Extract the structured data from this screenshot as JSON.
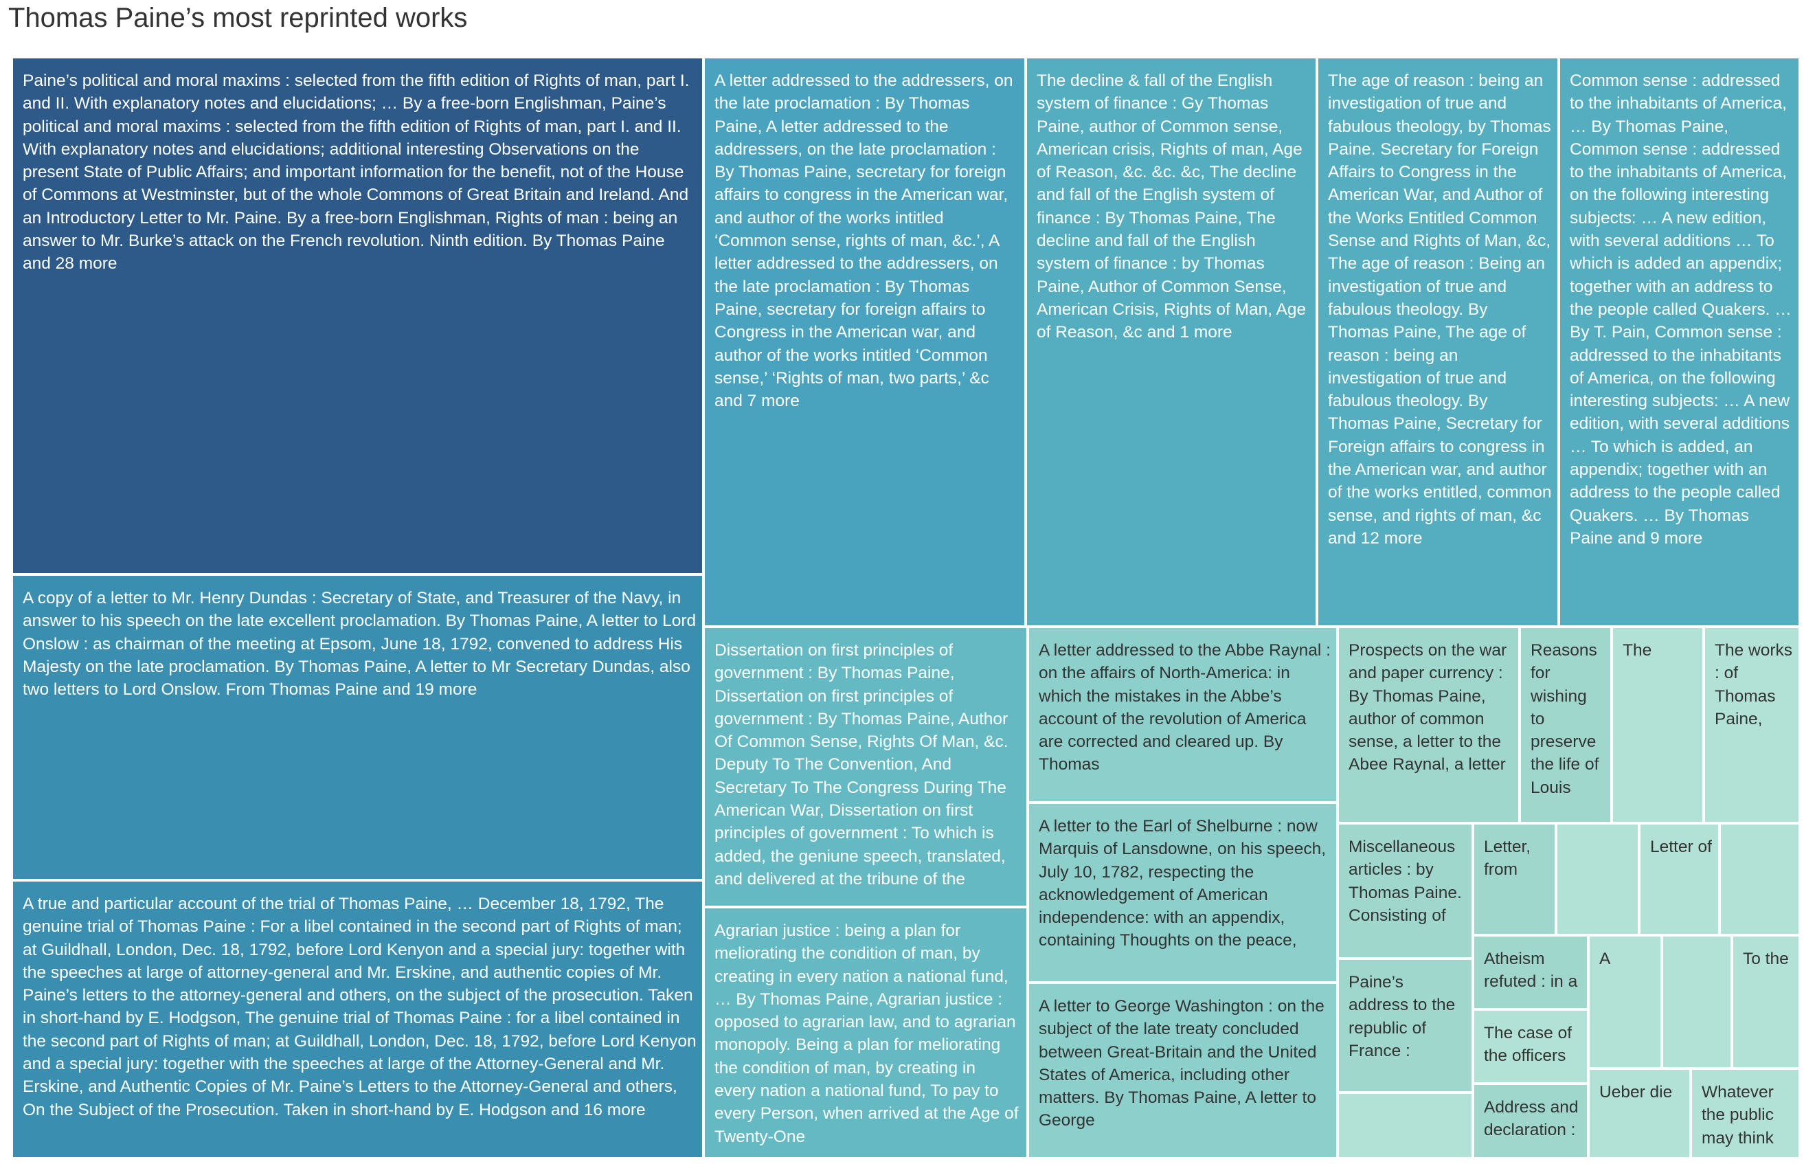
{
  "chart_data": {
    "type": "treemap",
    "title": "Thomas Paine’s most reprinted works",
    "size_measure": "relative reprint count (estimated from tile areas)",
    "colors": {
      "darkest": "#2d5a88",
      "dark": "#3a8eb0",
      "mid_dark": "#4aa3be",
      "mid": "#55aec0",
      "mid_light": "#64b9c2",
      "light": "#8dcfca",
      "lighter": "#9fd7cd",
      "lightest": "#b2e1d5",
      "label_light": "#ffffff",
      "label_dark": "#333333"
    },
    "items": [
      {
        "id": 1,
        "value": 455,
        "color": "darkest",
        "label": "Paine’s political and moral maxims : selected from the fifth edition of Rights of man, part I. and II. With explanatory notes and elucidations; … By a free-born Englishman, Paine’s political and moral maxims : selected from the fifth edition of Rights of man, part I. and II. With explanatory notes and elucidations; additional interesting Observations on the present State of Public Affairs; and important information for the benefit, not of the House of Commons at Westminster, but of the whole Commons of Great Britain and Ireland. And an Introductory Letter to Mr. Paine. By a free-born Englishman, Rights of man : being an answer to Mr. Burke’s attack on the French revolution. Ninth edition. By Thomas Paine and 28 more"
      },
      {
        "id": 2,
        "value": 268,
        "color": "dark",
        "label": "A copy of a letter to Mr. Henry Dundas : Secretary of State, and Treasurer of the Navy, in answer to his speech on the late excellent proclamation. By Thomas Paine, A letter to Lord Onslow : as chairman of the meeting at Epsom, June 18, 1792, convened to address His Majesty on the late proclamation. By Thomas Paine, A letter to Mr Secretary Dundas, also two letters to Lord Onslow. From Thomas Paine and 19 more"
      },
      {
        "id": 3,
        "value": 246,
        "color": "dark",
        "label": "A true and particular account of the trial of Thomas Paine, … December 18, 1792, The genuine trial of Thomas Paine : For a libel contained in the second part of Rights of man; at Guildhall, London, Dec. 18, 1792, before Lord Kenyon and a special jury: together with the speeches at large of attorney-general and Mr. Erskine, and authentic copies of Mr. Paine’s letters to the attorney-general and others, on the subject of the prosecution. Taken in short-hand by E. Hodgson, The genuine trial of Thomas Paine : for a libel contained in the second part of Rights of man; at Guildhall, London, Dec. 18, 1792, before Lord Kenyon and a special jury: together with the speeches at large of the Attorney-General and Mr. Erskine, and Authentic Copies of Mr. Paine’s Letters to the Attorney-General and others, On the Subject of the Prosecution. Taken in short-hand by E. Hodgson and 16 more"
      },
      {
        "id": 4,
        "value": 220,
        "color": "mid_dark",
        "label": "A letter addressed to the addressers, on the late proclamation : By Thomas Paine, A letter addressed to the addressers, on the late proclamation : By Thomas Paine, secretary for foreign affairs to congress in the American war, and author of the works intitled ‘Common sense, rights of man, &c.’, A letter addressed to the addressers, on the late proclamation : By Thomas Paine, secretary for foreign affairs to Congress in the American war, and author of the works intitled ‘Common sense,’ ‘Rights of man, two parts,’ &c and 7 more"
      },
      {
        "id": 5,
        "value": 198,
        "color": "mid",
        "label": "The decline & fall of the English system of finance : Gy Thomas Paine, author of Common sense, American crisis, Rights of man, Age of Reason, &c. &c. &c, The decline and fall of the English system of finance : By Thomas Paine, The decline and fall of the English system of finance : by Thomas Paine, Author of Common Sense, American Crisis, Rights of Man, Age of Reason, &c and 1 more"
      },
      {
        "id": 6,
        "value": 165,
        "color": "mid",
        "label": "The age of reason : being an investigation of true and fabulous theology, by Thomas Paine. Secretary for Foreign Affairs to Congress in the American War, and Author of the Works Entitled Common Sense and Rights of Man, &c, The age of reason : Being an investigation of true and fabulous theology. By Thomas Paine, The age of reason : being an investigation of true and fabulous theology. By Thomas Paine, Secretary for Foreign affairs to congress in the American war, and author of the works entitled, common sense, and rights of man, &c and 12 more"
      },
      {
        "id": 7,
        "value": 165,
        "color": "mid",
        "label": "Common sense : addressed to the inhabitants of America, … By Thomas Paine, Common sense : addressed to the inhabitants of America, on the following interesting subjects: … A new edition, with several additions … To which is added an appendix; together with an address to the people called Quakers. … By T. Pain, Common sense : addressed to the inhabitants of America, on the following interesting subjects: … A new edition, with several additions … To which is added, an appendix; together with an address to the people called Quakers. … By Thomas Paine and 9 more"
      },
      {
        "id": 8,
        "value": 112,
        "color": "mid_light",
        "label": "Dissertation on first principles of government : By Thomas Paine, Dissertation on first principles of government : By Thomas Paine, Author Of Common Sense, Rights Of Man, &c. Deputy To The Convention, And Secretary To The Congress During The American War, Dissertation on first principles of government : To which is added, the geniune speech, translated, and delivered at the tribune of the"
      },
      {
        "id": 9,
        "value": 106,
        "color": "mid_light",
        "label": "Agrarian justice : being a plan for meliorating the condition of man, by creating in every nation a national fund, … By Thomas Paine, Agrarian justice : opposed to agrarian law, and to agrarian monopoly. Being a plan for meliorating the condition of man, by creating in every nation a national fund, To pay to every Person, when arrived at the Age of Twenty-One"
      },
      {
        "id": 10,
        "value": 100,
        "color": "light",
        "label": "A letter addressed to the Abbe Raynal : on the affairs of North-America: in which the mistakes in the Abbe’s account of the revolution of America are corrected and cleared up. By Thomas"
      },
      {
        "id": 11,
        "value": 93,
        "color": "light",
        "label": "A letter to the Earl of Shelburne : now Marquis of Lansdowne, on his speech, July 10, 1782, respecting the acknowledgement of American independence: with an appendix, containing Thoughts on the peace,"
      },
      {
        "id": 12,
        "value": 94,
        "color": "light",
        "label": "A letter to George Washington : on the subject of the late treaty concluded between Great-Britain and the United States of America, including other matters. By Thomas Paine, A letter to George"
      },
      {
        "id": 13,
        "value": 51,
        "color": "lighter",
        "label": "Prospects on the war and paper currency : By Thomas Paine, author of common sense, a letter to the Abee Raynal, a letter"
      },
      {
        "id": 14,
        "value": 28,
        "color": "lighter",
        "label": "Reasons for wishing to preserve the life of Louis"
      },
      {
        "id": 15,
        "value": 22,
        "color": "lightest",
        "label": "The"
      },
      {
        "id": 16,
        "value": 22,
        "color": "lightest",
        "label": "The works : of Thomas Paine,"
      },
      {
        "id": 17,
        "value": 30,
        "color": "lighter",
        "label": "Miscellaneous articles : by Thomas Paine. Consisting of"
      },
      {
        "id": 18,
        "value": 31,
        "color": "lighter",
        "label": "Paine’s address to the republic of France :"
      },
      {
        "id": 19,
        "value": 14,
        "color": "lightest",
        "label": ""
      },
      {
        "id": 20,
        "value": 19,
        "color": "lighter",
        "label": "Letter, from"
      },
      {
        "id": 21,
        "value": 19,
        "color": "lightest",
        "label": ""
      },
      {
        "id": 22,
        "value": 19,
        "color": "lightest",
        "label": "Letter of"
      },
      {
        "id": 23,
        "value": 19,
        "color": "lightest",
        "label": ""
      },
      {
        "id": 24,
        "value": 19,
        "color": "lighter",
        "label": "Atheism refuted : in a"
      },
      {
        "id": 25,
        "value": 19,
        "color": "lightest",
        "label": "The case of the officers"
      },
      {
        "id": 26,
        "value": 19,
        "color": "lighter",
        "label": "Address and declaration :"
      },
      {
        "id": 27,
        "value": 14,
        "color": "lightest",
        "label": "A"
      },
      {
        "id": 28,
        "value": 14,
        "color": "lightest",
        "label": ""
      },
      {
        "id": 29,
        "value": 14,
        "color": "lightest",
        "label": "To the"
      },
      {
        "id": 30,
        "value": 14,
        "color": "lightest",
        "label": "Ueber die"
      },
      {
        "id": 31,
        "value": 14,
        "color": "lightest",
        "label": "Whatever the public may think"
      }
    ]
  }
}
